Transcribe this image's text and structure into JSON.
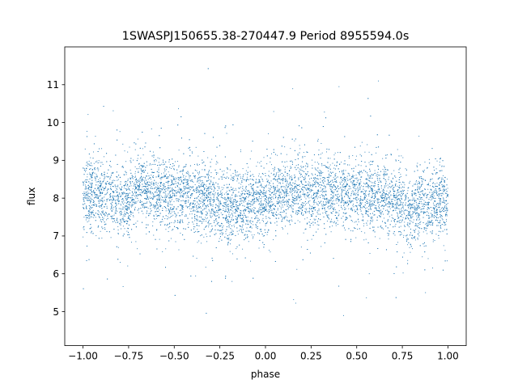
{
  "chart_data": {
    "type": "scatter",
    "title": "1SWASPJ150655.38-270447.9 Period 8955594.0s",
    "xlabel": "phase",
    "ylabel": "flux",
    "xlim": [
      -1.1,
      1.1
    ],
    "ylim": [
      4.1,
      12.0
    ],
    "x_ticks": [
      -1.0,
      -0.75,
      -0.5,
      -0.25,
      0.0,
      0.25,
      0.5,
      0.75,
      1.0
    ],
    "x_tick_labels": [
      "−1.00",
      "−0.75",
      "−0.50",
      "−0.25",
      "0.00",
      "0.25",
      "0.50",
      "0.75",
      "1.00"
    ],
    "y_ticks": [
      5,
      6,
      7,
      8,
      9,
      10,
      11
    ],
    "y_tick_labels": [
      "5",
      "6",
      "7",
      "8",
      "9",
      "10",
      "11"
    ],
    "grid": false,
    "marker_color": "#1f77b4",
    "x_range_of_points": [
      -1.0,
      1.0
    ],
    "y_range_of_points": [
      4.5,
      11.6
    ],
    "series": [
      {
        "profile_phase": [
          -1.0,
          -0.9,
          -0.8,
          -0.75,
          -0.7,
          -0.6,
          -0.5,
          -0.4,
          -0.3,
          -0.25,
          -0.2,
          -0.1,
          0.0,
          0.1,
          0.2,
          0.25,
          0.3,
          0.4,
          0.5,
          0.6,
          0.7,
          0.75,
          0.8,
          0.9,
          1.0
        ],
        "profile_median_flux": [
          8.1,
          8.1,
          8.0,
          7.9,
          8.3,
          8.2,
          8.1,
          8.1,
          7.9,
          7.8,
          7.7,
          7.8,
          8.0,
          8.1,
          8.2,
          8.0,
          8.3,
          8.1,
          8.1,
          8.1,
          7.9,
          7.8,
          7.7,
          7.8,
          8.0
        ]
      }
    ]
  }
}
